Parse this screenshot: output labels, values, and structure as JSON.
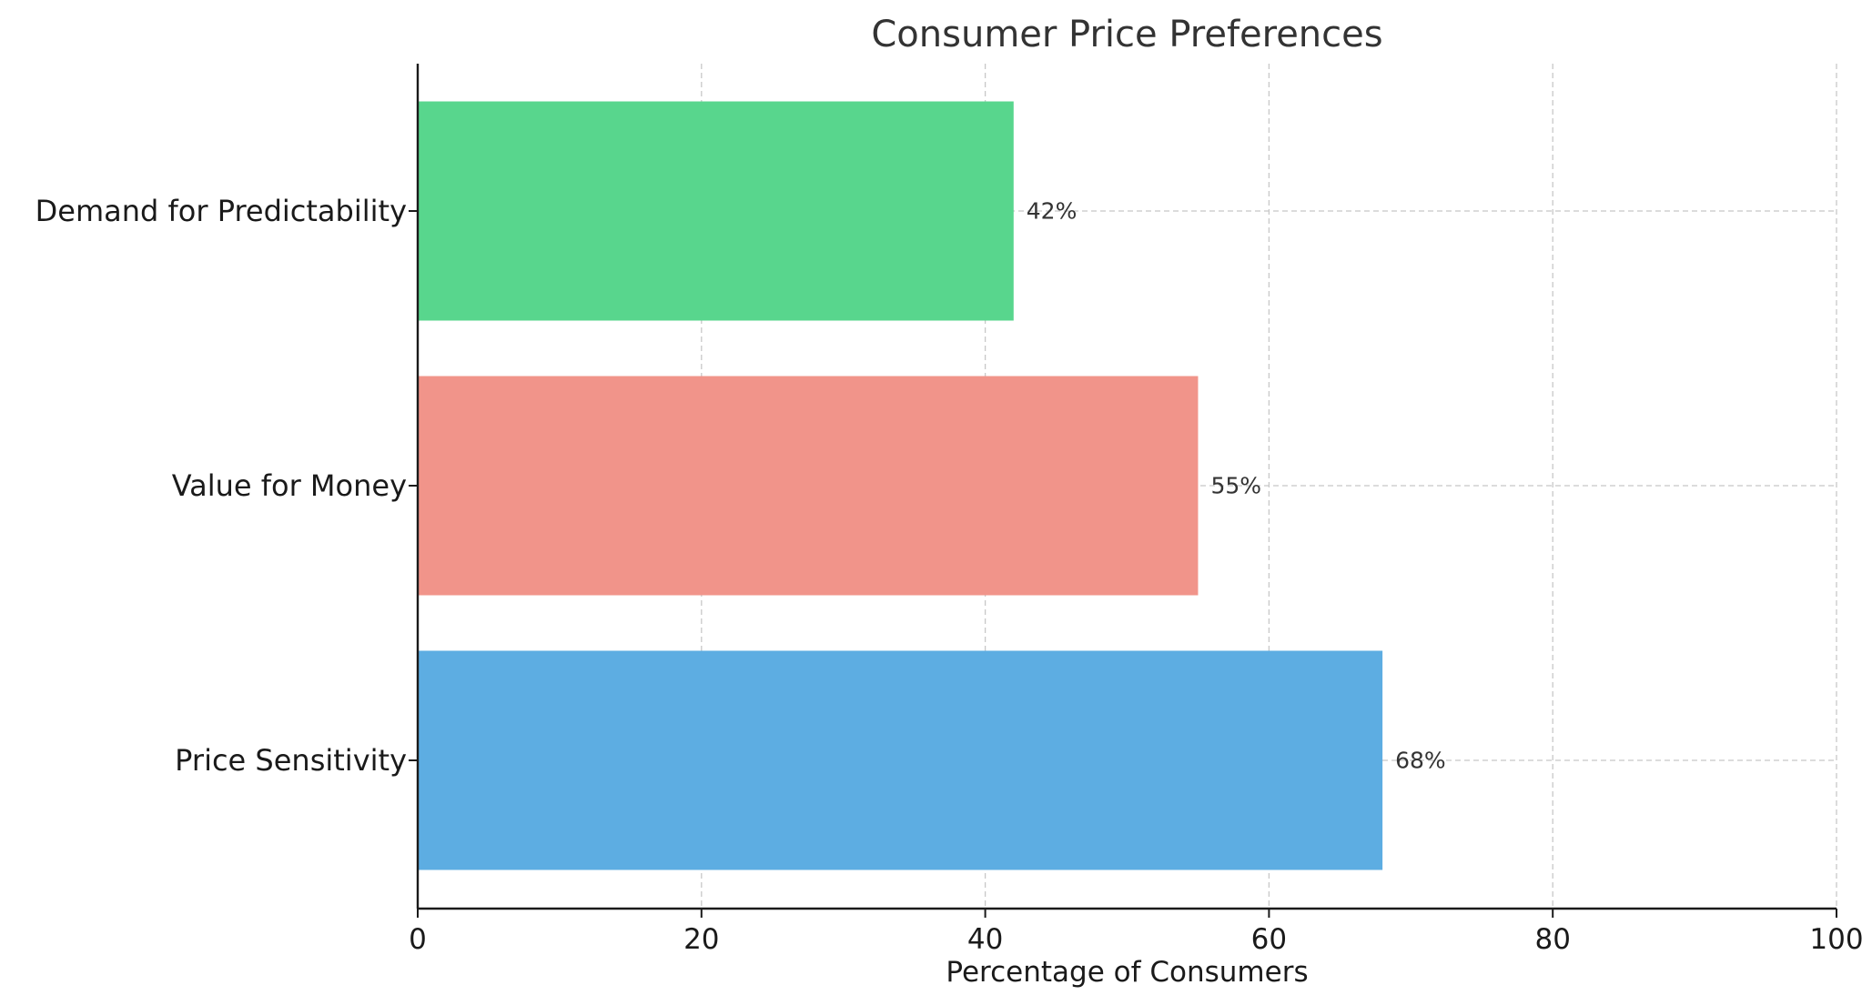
{
  "chart_data": {
    "type": "bar",
    "orientation": "horizontal",
    "title": "Consumer Price Preferences",
    "xlabel": "Percentage of Consumers",
    "ylabel": "",
    "categories": [
      "Price Sensitivity",
      "Value for Money",
      "Demand for Predictability"
    ],
    "values": [
      68,
      55,
      42
    ],
    "value_labels": [
      "68%",
      "55%",
      "42%"
    ],
    "colors": [
      "#5dade2",
      "#f1948a",
      "#58d68d"
    ],
    "xlim": [
      0,
      100
    ],
    "xticks": [
      0,
      20,
      40,
      60,
      80,
      100
    ],
    "xtick_labels": [
      "0",
      "20",
      "40",
      "60",
      "80",
      "100"
    ],
    "grid": true,
    "legend": "none"
  }
}
